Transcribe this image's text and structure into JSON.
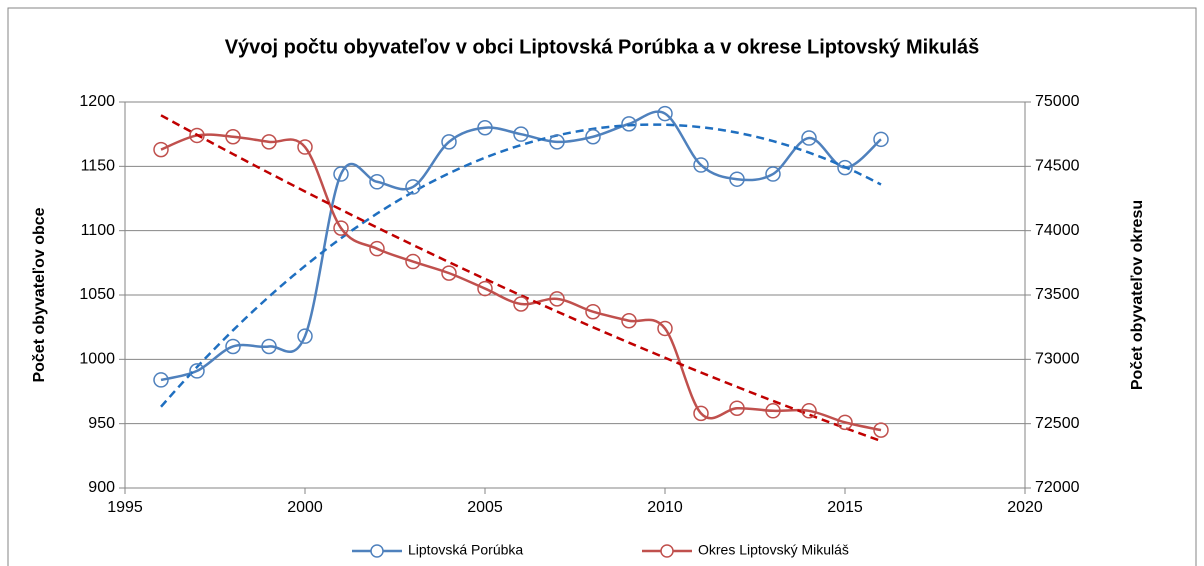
{
  "chart_data": {
    "type": "line",
    "title": "Vývoj počtu obyvateľov v obci Liptovská Porúbka a v okrese Liptovský Mikuláš",
    "ylabel": "Počet obyvateľov obce",
    "y2label": "Počet obyvateľov okresu",
    "x": [
      1996,
      1997,
      1998,
      1999,
      2000,
      2001,
      2002,
      2003,
      2004,
      2005,
      2006,
      2007,
      2008,
      2009,
      2010,
      2011,
      2012,
      2013,
      2014,
      2015,
      2016
    ],
    "xlim": [
      1995,
      2020
    ],
    "xticks": [
      1995,
      2000,
      2005,
      2010,
      2015,
      2020
    ],
    "ylim": [
      900,
      1200
    ],
    "yticks": [
      900,
      950,
      1000,
      1050,
      1100,
      1150,
      1200
    ],
    "y2lim": [
      72000,
      75000
    ],
    "y2ticks": [
      72000,
      72500,
      73000,
      73500,
      74000,
      74500,
      75000
    ],
    "grid": true,
    "legend": "bottom",
    "smooth": true,
    "trendline": {
      "type": "polynomial",
      "order": 2
    },
    "series": [
      {
        "name": "Liptovská Porúbka",
        "color": "#4f81bd",
        "trend_color": "#1f6fc0",
        "axis": "y",
        "values": [
          984,
          991,
          1010,
          1010,
          1018,
          1144,
          1138,
          1134,
          1169,
          1180,
          1175,
          1169,
          1173,
          1183,
          1191,
          1151,
          1140,
          1144,
          1172,
          1149,
          1171
        ]
      },
      {
        "name": "Okres Liptovský Mikuláš",
        "color": "#c0504d",
        "trend_color": "#c00000",
        "axis": "y2",
        "values": [
          74630,
          74740,
          74730,
          74690,
          74650,
          74020,
          73860,
          73760,
          73670,
          73550,
          73430,
          73470,
          73370,
          73300,
          73240,
          72580,
          72620,
          72600,
          72600,
          72510,
          72450
        ]
      }
    ]
  }
}
